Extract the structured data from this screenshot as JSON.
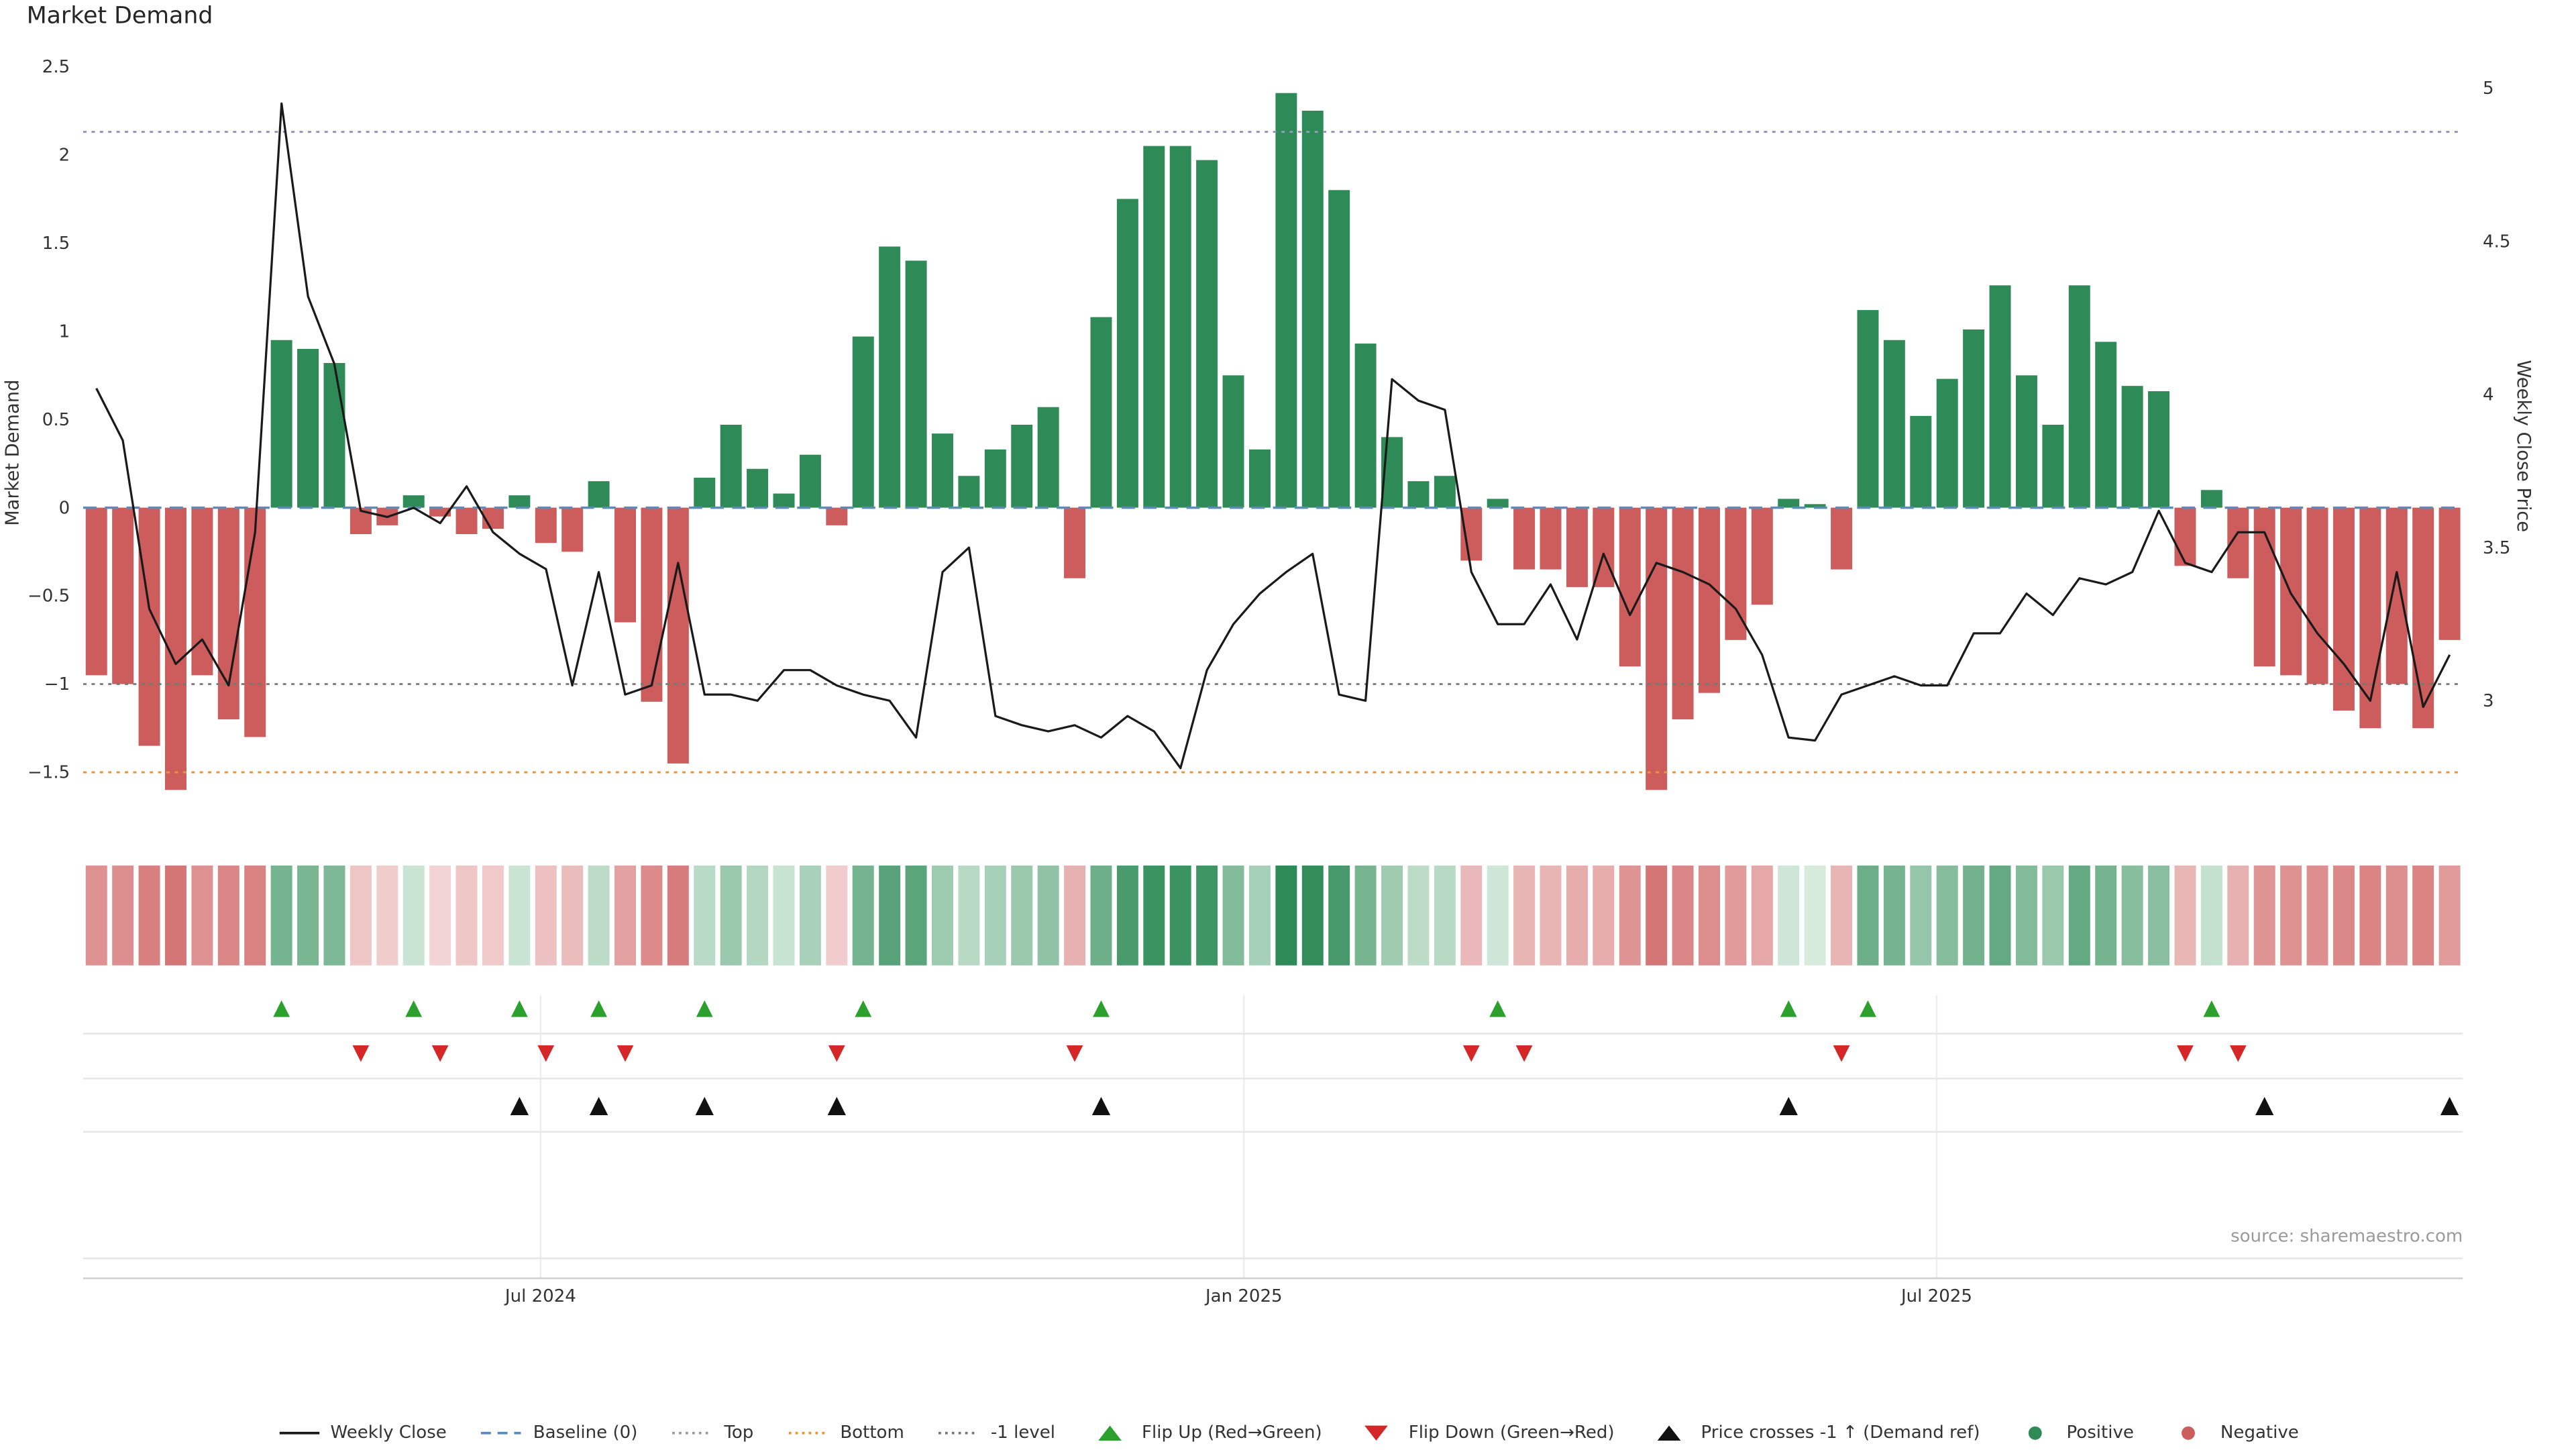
{
  "title": "Market Demand",
  "source_note": "source: sharemaestro.com",
  "colors": {
    "positive": "#2e8b57",
    "negative": "#cd5c5c",
    "price_line": "#1a1a1a",
    "baseline": "#5b8abd",
    "top_line": "#9595c8",
    "bottom_line": "#e8943a",
    "minus_one_line": "#777777",
    "flip_up": "#2ca02c",
    "flip_down": "#d62728",
    "price_cross": "#111111",
    "heat_green_dark": "#2e8b57",
    "heat_green_light": "#e4f3e8",
    "heat_red_dark": "#cd5c5c",
    "heat_red_light": "#f8e4e4"
  },
  "axes": {
    "left_label": "Market Demand",
    "right_label": "Weekly Close Price",
    "left_ticks": [
      "2.5",
      "2",
      "1.5",
      "1",
      "0.5",
      "0",
      "−0.5",
      "−1",
      "−1.5"
    ],
    "right_ticks": [
      "5",
      "4.5",
      "4",
      "3.5",
      "3"
    ],
    "x_tick_labels": [
      "Jul 2024",
      "Jan 2025",
      "Jul 2025"
    ],
    "x_tick_index": [
      17.3,
      43.9,
      70.1
    ]
  },
  "chart_data": {
    "type": "bar",
    "title": "Market Demand",
    "ylabel_left": "Market Demand",
    "ylabel_right": "Weekly Close Price",
    "ylim_left": [
      -1.9,
      2.55
    ],
    "ylim_right": [
      2.75,
      5.05
    ],
    "legend_position": "bottom",
    "grid": false,
    "bar_series": {
      "name": "Market Demand",
      "values": [
        -0.95,
        -1.0,
        -1.35,
        -1.6,
        -0.95,
        -1.2,
        -1.3,
        0.95,
        0.9,
        0.82,
        -0.15,
        -0.1,
        0.07,
        -0.05,
        -0.15,
        -0.12,
        0.07,
        -0.2,
        -0.25,
        0.15,
        -0.65,
        -1.1,
        -1.45,
        0.17,
        0.47,
        0.22,
        0.08,
        0.3,
        -0.1,
        0.97,
        1.48,
        1.4,
        0.42,
        0.18,
        0.33,
        0.47,
        0.57,
        -0.4,
        1.08,
        1.75,
        2.05,
        2.05,
        1.97,
        0.75,
        0.33,
        2.35,
        2.25,
        1.8,
        0.93,
        0.4,
        0.15,
        0.18,
        -0.3,
        0.05,
        -0.35,
        -0.35,
        -0.45,
        -0.45,
        -0.9,
        -1.6,
        -1.2,
        -1.05,
        -0.75,
        -0.55,
        0.05,
        0.02,
        -0.35,
        1.12,
        0.95,
        0.52,
        0.73,
        1.01,
        1.26,
        0.75,
        0.47,
        1.26,
        0.94,
        0.69,
        0.66,
        -0.33,
        0.1,
        -0.4,
        -0.9,
        -0.95,
        -1.0,
        -1.15,
        -1.25,
        -1.0,
        -1.25,
        -0.75
      ]
    },
    "line_series": {
      "name": "Weekly Close",
      "axis": "right",
      "values": [
        4.02,
        3.85,
        3.3,
        3.12,
        3.2,
        3.05,
        3.55,
        4.95,
        4.32,
        4.1,
        3.62,
        3.6,
        3.63,
        3.58,
        3.7,
        3.55,
        3.48,
        3.43,
        3.05,
        3.42,
        3.02,
        3.05,
        3.45,
        3.02,
        3.02,
        3.0,
        3.1,
        3.1,
        3.05,
        3.02,
        3.0,
        2.88,
        3.42,
        3.5,
        2.95,
        2.92,
        2.9,
        2.92,
        2.88,
        2.95,
        2.9,
        2.78,
        3.1,
        3.25,
        3.35,
        3.42,
        3.48,
        3.02,
        3.0,
        4.05,
        3.98,
        3.95,
        3.42,
        3.25,
        3.25,
        3.38,
        3.2,
        3.48,
        3.28,
        3.45,
        3.42,
        3.38,
        3.3,
        3.15,
        2.88,
        2.87,
        3.02,
        3.05,
        3.08,
        3.05,
        3.05,
        3.22,
        3.22,
        3.35,
        3.28,
        3.4,
        3.38,
        3.42,
        3.62,
        3.45,
        3.42,
        3.55,
        3.55,
        3.35,
        3.22,
        3.12,
        3.0,
        3.42,
        2.98,
        3.15
      ]
    },
    "reference_lines": {
      "baseline": 0,
      "top": 2.13,
      "bottom": -1.5,
      "minus_one_level": -1
    },
    "markers": {
      "flip_up_indices": [
        7,
        12,
        16,
        19,
        23,
        29,
        38,
        53,
        64,
        67,
        80
      ],
      "flip_down_indices": [
        10,
        13,
        17,
        20,
        28,
        37,
        52,
        54,
        66,
        79,
        81
      ],
      "price_cross_indices": [
        16,
        19,
        23,
        28,
        38,
        64,
        82,
        89
      ]
    },
    "heatmap_strip": true
  },
  "legend": [
    {
      "label": "Weekly Close",
      "type": "line",
      "color": "#1a1a1a"
    },
    {
      "label": "Baseline (0)",
      "type": "dashed",
      "color": "#5b8abd"
    },
    {
      "label": "Top",
      "type": "dotted",
      "color": "#999999"
    },
    {
      "label": "Bottom",
      "type": "dotted",
      "color": "#e8943a"
    },
    {
      "label": "-1 level",
      "type": "dotted",
      "color": "#777777"
    },
    {
      "label": "Flip Up (Red→Green)",
      "type": "triangle-up",
      "color": "#2ca02c"
    },
    {
      "label": "Flip Down (Green→Red)",
      "type": "triangle-down",
      "color": "#d62728"
    },
    {
      "label": "Price crosses -1 ↑ (Demand ref)",
      "type": "triangle-up",
      "color": "#111111"
    },
    {
      "label": "Positive",
      "type": "dot",
      "color": "#2e8b57"
    },
    {
      "label": "Negative",
      "type": "dot",
      "color": "#cd5c5c"
    }
  ]
}
